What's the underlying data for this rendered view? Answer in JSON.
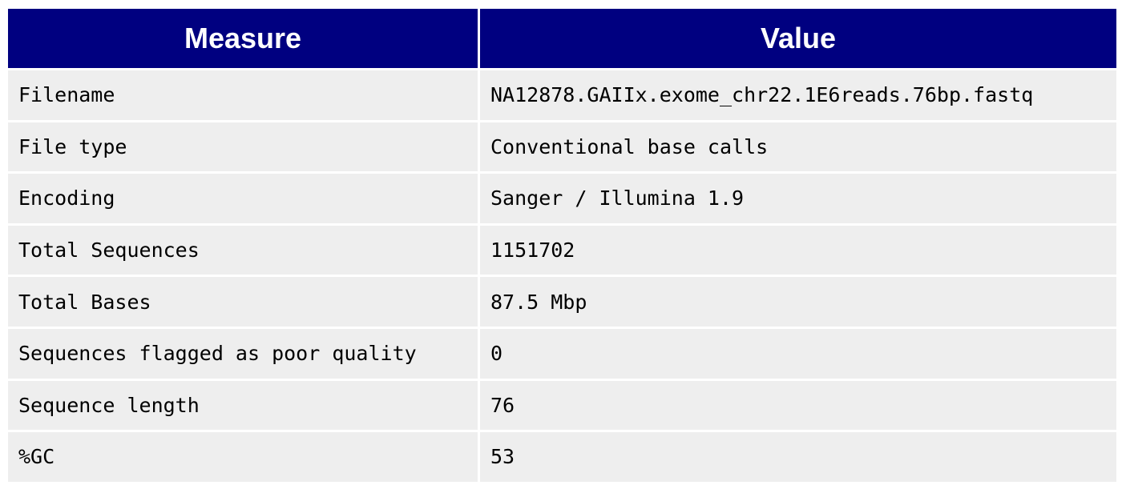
{
  "table": {
    "headers": [
      "Measure",
      "Value"
    ],
    "rows": [
      [
        "Filename",
        "NA12878.GAIIx.exome_chr22.1E6reads.76bp.fastq"
      ],
      [
        "File type",
        "Conventional base calls"
      ],
      [
        "Encoding",
        "Sanger / Illumina 1.9"
      ],
      [
        "Total Sequences",
        "1151702"
      ],
      [
        "Total Bases",
        "87.5 Mbp"
      ],
      [
        "Sequences flagged as poor quality",
        "0"
      ],
      [
        "Sequence length",
        "76"
      ],
      [
        "%GC",
        "53"
      ]
    ]
  },
  "colors": {
    "header_bg": "#000080",
    "header_text": "#ffffff",
    "cell_bg": "#eeeeee",
    "cell_text": "#000000"
  }
}
